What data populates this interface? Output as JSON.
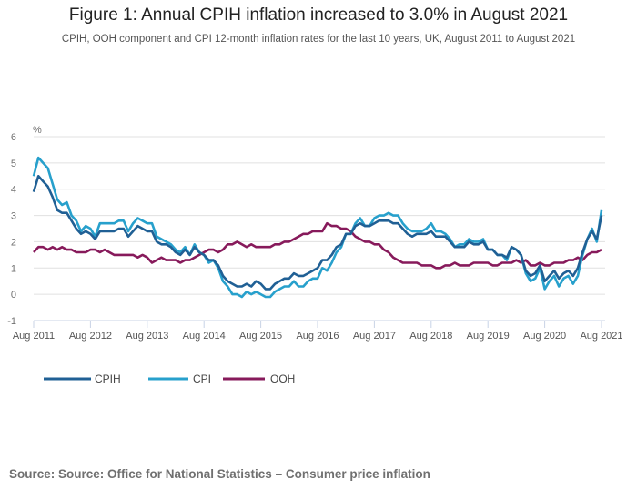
{
  "chart_data": {
    "type": "line",
    "title": "Figure 1: Annual CPIH inflation increased to 3.0% in August 2021",
    "subtitle": "CPIH, OOH component and CPI 12-month inflation rates for the last 10 years, UK, August 2011 to August 2021",
    "ylabel": "%",
    "xlabel": "",
    "ylim": [
      -1,
      6
    ],
    "yticks": [
      "6",
      "5",
      "4",
      "3",
      "2",
      "1",
      "0",
      "-1"
    ],
    "xticks": [
      "Aug 2011",
      "Aug 2012",
      "Aug 2013",
      "Aug 2014",
      "Aug 2015",
      "Aug 2016",
      "Aug 2017",
      "Aug 2018",
      "Aug 2019",
      "Aug 2020",
      "Aug 2021"
    ],
    "x_start": "Aug 2011",
    "x_end": "Aug 2021",
    "frequency": "monthly",
    "grid": true,
    "legend": "bottom-left",
    "series": [
      {
        "name": "CPIH",
        "color": "#206095",
        "values": [
          3.9,
          4.5,
          4.3,
          4.1,
          3.7,
          3.2,
          3.1,
          3.1,
          2.8,
          2.5,
          2.3,
          2.4,
          2.3,
          2.1,
          2.4,
          2.4,
          2.4,
          2.4,
          2.5,
          2.5,
          2.2,
          2.4,
          2.6,
          2.5,
          2.4,
          2.4,
          2.0,
          1.9,
          1.9,
          1.8,
          1.6,
          1.5,
          1.7,
          1.5,
          1.8,
          1.6,
          1.5,
          1.3,
          1.3,
          1.1,
          0.7,
          0.5,
          0.4,
          0.3,
          0.3,
          0.4,
          0.3,
          0.5,
          0.4,
          0.2,
          0.2,
          0.4,
          0.5,
          0.6,
          0.6,
          0.8,
          0.7,
          0.7,
          0.8,
          0.9,
          1.0,
          1.3,
          1.3,
          1.5,
          1.8,
          1.9,
          2.3,
          2.3,
          2.6,
          2.7,
          2.6,
          2.6,
          2.7,
          2.8,
          2.8,
          2.8,
          2.7,
          2.7,
          2.5,
          2.3,
          2.2,
          2.3,
          2.3,
          2.3,
          2.4,
          2.2,
          2.2,
          2.2,
          2.0,
          1.8,
          1.8,
          1.8,
          2.0,
          1.9,
          1.9,
          2.0,
          1.7,
          1.7,
          1.5,
          1.5,
          1.4,
          1.8,
          1.7,
          1.5,
          0.9,
          0.7,
          0.8,
          1.1,
          0.5,
          0.7,
          0.9,
          0.6,
          0.8,
          0.9,
          0.7,
          1.0,
          1.6,
          2.1,
          2.4,
          2.1,
          3.0
        ]
      },
      {
        "name": "CPI",
        "color": "#27a0cc",
        "values": [
          4.5,
          5.2,
          5.0,
          4.8,
          4.2,
          3.6,
          3.4,
          3.5,
          3.0,
          2.8,
          2.4,
          2.6,
          2.5,
          2.2,
          2.7,
          2.7,
          2.7,
          2.7,
          2.8,
          2.8,
          2.4,
          2.7,
          2.9,
          2.8,
          2.7,
          2.7,
          2.2,
          2.1,
          2.0,
          1.9,
          1.7,
          1.6,
          1.8,
          1.5,
          1.9,
          1.6,
          1.5,
          1.2,
          1.3,
          1.0,
          0.5,
          0.3,
          0.0,
          0.0,
          -0.1,
          0.1,
          0.0,
          0.1,
          0.0,
          -0.1,
          -0.1,
          0.1,
          0.2,
          0.3,
          0.3,
          0.5,
          0.3,
          0.3,
          0.5,
          0.6,
          0.6,
          1.0,
          0.9,
          1.2,
          1.6,
          1.8,
          2.3,
          2.3,
          2.7,
          2.9,
          2.6,
          2.6,
          2.9,
          3.0,
          3.0,
          3.1,
          3.0,
          3.0,
          2.7,
          2.5,
          2.4,
          2.4,
          2.4,
          2.5,
          2.7,
          2.4,
          2.4,
          2.3,
          2.1,
          1.8,
          1.9,
          1.9,
          2.1,
          2.0,
          2.0,
          2.1,
          1.7,
          1.7,
          1.5,
          1.5,
          1.3,
          1.8,
          1.7,
          1.5,
          0.8,
          0.5,
          0.6,
          1.0,
          0.2,
          0.5,
          0.7,
          0.3,
          0.6,
          0.7,
          0.4,
          0.7,
          1.5,
          2.1,
          2.5,
          2.0,
          3.2
        ]
      },
      {
        "name": "OOH",
        "color": "#871a5b",
        "values": [
          1.6,
          1.8,
          1.8,
          1.7,
          1.8,
          1.7,
          1.8,
          1.7,
          1.7,
          1.6,
          1.6,
          1.6,
          1.7,
          1.7,
          1.6,
          1.7,
          1.6,
          1.5,
          1.5,
          1.5,
          1.5,
          1.5,
          1.4,
          1.5,
          1.4,
          1.2,
          1.3,
          1.4,
          1.3,
          1.3,
          1.3,
          1.2,
          1.3,
          1.3,
          1.4,
          1.5,
          1.6,
          1.7,
          1.7,
          1.6,
          1.7,
          1.9,
          1.9,
          2.0,
          1.9,
          1.8,
          1.9,
          1.8,
          1.8,
          1.8,
          1.8,
          1.9,
          1.9,
          2.0,
          2.0,
          2.1,
          2.2,
          2.3,
          2.3,
          2.4,
          2.4,
          2.4,
          2.7,
          2.6,
          2.6,
          2.5,
          2.5,
          2.4,
          2.2,
          2.1,
          2.0,
          2.0,
          1.9,
          1.9,
          1.7,
          1.6,
          1.4,
          1.3,
          1.2,
          1.2,
          1.2,
          1.2,
          1.1,
          1.1,
          1.1,
          1.0,
          1.0,
          1.1,
          1.1,
          1.2,
          1.1,
          1.1,
          1.1,
          1.2,
          1.2,
          1.2,
          1.2,
          1.1,
          1.1,
          1.2,
          1.2,
          1.2,
          1.3,
          1.2,
          1.3,
          1.1,
          1.1,
          1.2,
          1.1,
          1.1,
          1.2,
          1.2,
          1.2,
          1.3,
          1.3,
          1.4,
          1.3,
          1.5,
          1.6,
          1.6,
          1.7
        ]
      }
    ]
  },
  "source": "Source: Source: Office for National Statistics – Consumer price inflation"
}
